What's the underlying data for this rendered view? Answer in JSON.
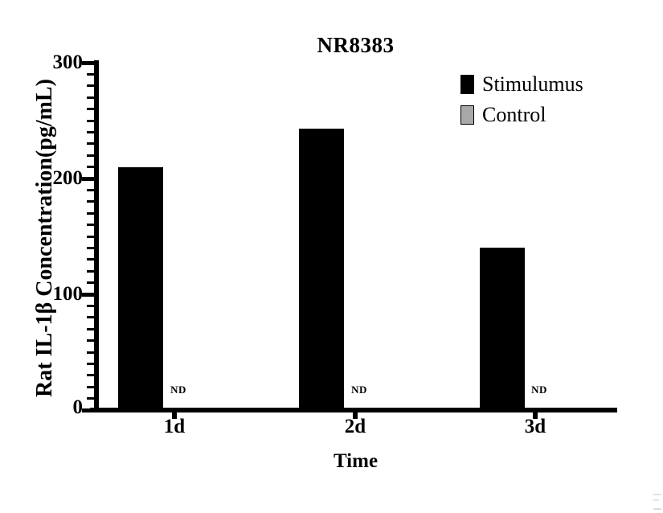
{
  "chart_data": {
    "type": "bar",
    "title": "NR8383",
    "xlabel": "Time",
    "ylabel": "Rat IL-1β Concentration(pg/mL)",
    "categories": [
      "1d",
      "2d",
      "3d"
    ],
    "series": [
      {
        "name": "Stimulumus",
        "color": "#000000",
        "values": [
          210,
          243,
          140
        ]
      },
      {
        "name": "Control",
        "color": "#a9a9a9",
        "values": [
          null,
          null,
          null
        ],
        "display": [
          "ND",
          "ND",
          "ND"
        ]
      }
    ],
    "ylim": [
      0,
      300
    ],
    "yticks": [
      0,
      100,
      200,
      300
    ],
    "y_minor_step": 10,
    "grid": false,
    "legend_position": "top-right",
    "plot_background": "#ffffff",
    "axis_color": "#000000"
  }
}
